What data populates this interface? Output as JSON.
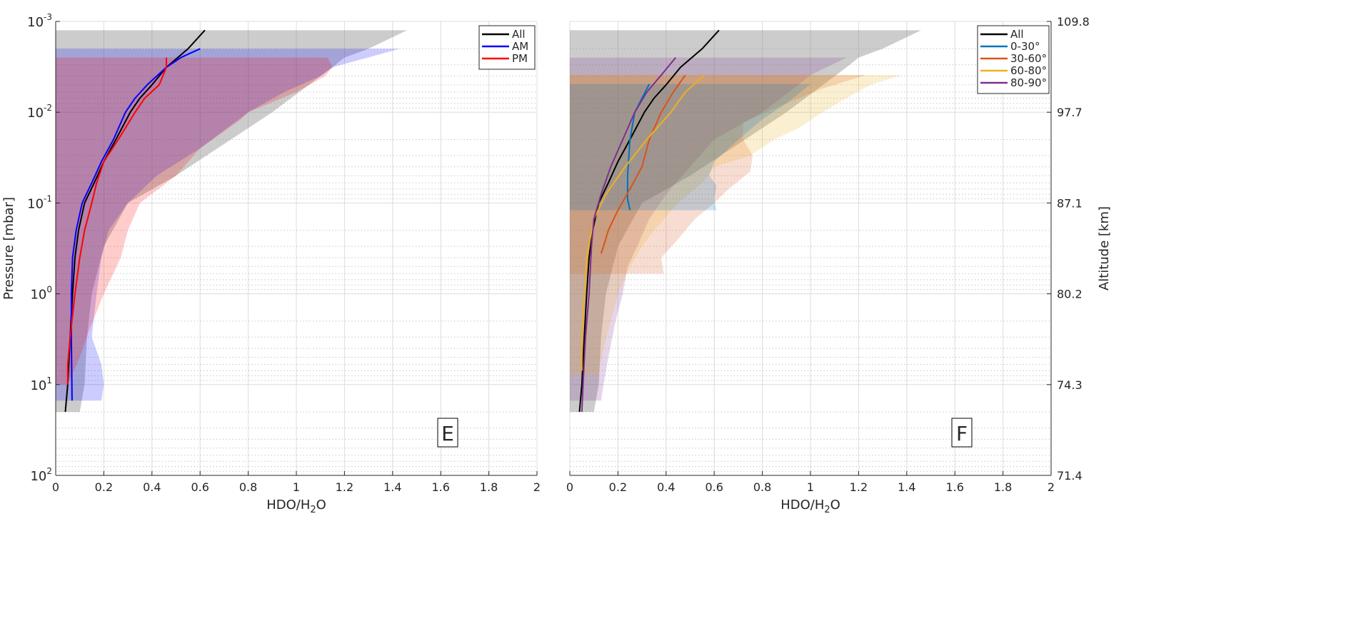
{
  "chart_data": [
    {
      "type": "line",
      "panel_label": "E",
      "xlabel": {
        "pre": "HDO/H",
        "sub": "2",
        "post": "O"
      },
      "ylabel": "Pressure [mbar]",
      "xlim": [
        0,
        2
      ],
      "ylim": [
        0.001,
        100
      ],
      "yscale": "log",
      "yreverse": true,
      "grid": true,
      "legend_position": "top-right",
      "xticks": [
        0,
        0.2,
        0.4,
        0.6,
        0.8,
        1,
        1.2,
        1.4,
        1.6,
        1.8,
        2
      ],
      "xtick_labels": [
        "0",
        "0.2",
        "0.4",
        "0.6",
        "0.8",
        "1",
        "1.2",
        "1.4",
        "1.6",
        "1.8",
        "2"
      ],
      "yticks": [
        0.001,
        0.01,
        0.1,
        1,
        10,
        100
      ],
      "ytick_labels": [
        {
          "base": "10",
          "exp": "-3"
        },
        {
          "base": "10",
          "exp": "-2"
        },
        {
          "base": "10",
          "exp": "-1"
        },
        {
          "base": "10",
          "exp": "0"
        },
        {
          "base": "10",
          "exp": "1"
        },
        {
          "base": "10",
          "exp": "2"
        }
      ],
      "bands": [
        {
          "name": "All",
          "color": "#808080",
          "opacity": 0.4,
          "upper": [
            [
              1.46,
              0.00125
            ],
            [
              1.3,
              0.002
            ],
            [
              1.2,
              0.0025
            ],
            [
              1.15,
              0.0032
            ],
            [
              0.9,
              0.01
            ],
            [
              0.5,
              0.05
            ],
            [
              0.3,
              0.1
            ],
            [
              0.2,
              0.3
            ],
            [
              0.15,
              1
            ],
            [
              0.13,
              3
            ],
            [
              0.12,
              10
            ],
            [
              0.1,
              20
            ]
          ]
        },
        {
          "name": "AM",
          "color": "#0000ff",
          "opacity": 0.2,
          "upper": [
            [
              1.43,
              0.002
            ],
            [
              1.15,
              0.0032
            ],
            [
              1.1,
              0.004
            ],
            [
              0.95,
              0.006
            ],
            [
              0.8,
              0.01
            ],
            [
              0.6,
              0.025
            ],
            [
              0.42,
              0.05
            ],
            [
              0.3,
              0.1
            ],
            [
              0.22,
              0.2
            ],
            [
              0.19,
              0.4
            ],
            [
              0.17,
              1
            ],
            [
              0.15,
              3
            ],
            [
              0.19,
              6
            ],
            [
              0.2,
              10
            ],
            [
              0.19,
              15
            ]
          ]
        },
        {
          "name": "PM",
          "color": "#ff0000",
          "opacity": 0.2,
          "upper": [
            [
              1.13,
              0.0025
            ],
            [
              1.15,
              0.0032
            ],
            [
              1.12,
              0.004
            ],
            [
              1.0,
              0.006
            ],
            [
              0.8,
              0.01
            ],
            [
              0.77,
              0.012
            ],
            [
              0.6,
              0.025
            ],
            [
              0.5,
              0.05
            ],
            [
              0.35,
              0.1
            ],
            [
              0.3,
              0.2
            ],
            [
              0.27,
              0.4
            ],
            [
              0.2,
              1
            ],
            [
              0.14,
              2.5
            ],
            [
              0.1,
              5
            ],
            [
              0.05,
              10
            ]
          ]
        }
      ],
      "series": [
        {
          "name": "All",
          "color": "#000000",
          "points": [
            [
              0.62,
              0.00125
            ],
            [
              0.55,
              0.002
            ],
            [
              0.46,
              0.0032
            ],
            [
              0.4,
              0.005
            ],
            [
              0.35,
              0.007
            ],
            [
              0.31,
              0.01
            ],
            [
              0.25,
              0.02
            ],
            [
              0.2,
              0.035
            ],
            [
              0.16,
              0.06
            ],
            [
              0.12,
              0.1
            ],
            [
              0.095,
              0.2
            ],
            [
              0.08,
              0.4
            ],
            [
              0.07,
              1
            ],
            [
              0.06,
              3
            ],
            [
              0.05,
              10
            ],
            [
              0.04,
              20
            ]
          ]
        },
        {
          "name": "AM",
          "color": "#0000ff",
          "points": [
            [
              0.6,
              0.002
            ],
            [
              0.52,
              0.0025
            ],
            [
              0.46,
              0.0032
            ],
            [
              0.38,
              0.005
            ],
            [
              0.33,
              0.007
            ],
            [
              0.29,
              0.01
            ],
            [
              0.24,
              0.02
            ],
            [
              0.19,
              0.035
            ],
            [
              0.15,
              0.06
            ],
            [
              0.11,
              0.1
            ],
            [
              0.085,
              0.2
            ],
            [
              0.07,
              0.4
            ],
            [
              0.065,
              1
            ],
            [
              0.065,
              3
            ],
            [
              0.068,
              15
            ]
          ]
        },
        {
          "name": "PM",
          "color": "#ff0000",
          "points": [
            [
              0.46,
              0.0025
            ],
            [
              0.46,
              0.0032
            ],
            [
              0.43,
              0.005
            ],
            [
              0.37,
              0.007
            ],
            [
              0.33,
              0.01
            ],
            [
              0.26,
              0.02
            ],
            [
              0.2,
              0.035
            ],
            [
              0.17,
              0.06
            ],
            [
              0.15,
              0.1
            ],
            [
              0.12,
              0.2
            ],
            [
              0.1,
              0.4
            ],
            [
              0.08,
              1
            ],
            [
              0.06,
              3
            ],
            [
              0.05,
              6
            ],
            [
              0.05,
              10
            ]
          ]
        }
      ]
    },
    {
      "type": "line",
      "panel_label": "F",
      "xlabel": {
        "pre": "HDO/H",
        "sub": "2",
        "post": "O"
      },
      "ylabel_right": "Altitude [km]",
      "xlim": [
        0,
        2
      ],
      "ylim": [
        0.001,
        100
      ],
      "yscale": "log",
      "yreverse": true,
      "grid": true,
      "legend_position": "top-right",
      "xticks": [
        0,
        0.2,
        0.4,
        0.6,
        0.8,
        1,
        1.2,
        1.4,
        1.6,
        1.8,
        2
      ],
      "xtick_labels": [
        "0",
        "0.2",
        "0.4",
        "0.6",
        "0.8",
        "1",
        "1.2",
        "1.4",
        "1.6",
        "1.8",
        "2"
      ],
      "yticks": [
        0.001,
        0.01,
        0.1,
        1,
        10,
        100
      ],
      "ytick_labels_right": [
        "109.8",
        "97.7",
        "87.1",
        "80.2",
        "74.3",
        "71.4"
      ],
      "bands": [
        {
          "name": "All",
          "color": "#808080",
          "opacity": 0.4,
          "upper": [
            [
              1.46,
              0.00125
            ],
            [
              1.3,
              0.002
            ],
            [
              1.2,
              0.0025
            ],
            [
              1.15,
              0.0032
            ],
            [
              0.9,
              0.01
            ],
            [
              0.5,
              0.05
            ],
            [
              0.3,
              0.1
            ],
            [
              0.2,
              0.3
            ],
            [
              0.15,
              1
            ],
            [
              0.13,
              3
            ],
            [
              0.12,
              10
            ],
            [
              0.1,
              20
            ]
          ]
        },
        {
          "name": "80-90°",
          "color": "#7E2F8E",
          "opacity": 0.2,
          "upper": [
            [
              1.15,
              0.0025
            ],
            [
              1.0,
              0.0039
            ],
            [
              0.95,
              0.005
            ],
            [
              0.8,
              0.01
            ],
            [
              0.6,
              0.02
            ],
            [
              0.5,
              0.04
            ],
            [
              0.4,
              0.08
            ],
            [
              0.33,
              0.15
            ],
            [
              0.28,
              0.3
            ],
            [
              0.24,
              0.5
            ],
            [
              0.22,
              1
            ],
            [
              0.19,
              2
            ],
            [
              0.16,
              5
            ],
            [
              0.14,
              10
            ],
            [
              0.13,
              15
            ]
          ]
        },
        {
          "name": "30-60°",
          "color": "#D95319",
          "opacity": 0.2,
          "upper": [
            [
              1.23,
              0.0039
            ],
            [
              1.05,
              0.0055
            ],
            [
              0.9,
              0.008
            ],
            [
              0.72,
              0.013
            ],
            [
              0.72,
              0.02
            ],
            [
              0.76,
              0.03
            ],
            [
              0.75,
              0.045
            ],
            [
              0.66,
              0.07
            ],
            [
              0.6,
              0.1
            ],
            [
              0.52,
              0.15
            ],
            [
              0.45,
              0.25
            ],
            [
              0.38,
              0.4
            ],
            [
              0.39,
              0.6
            ]
          ]
        },
        {
          "name": "60-80°",
          "color": "#EDB120",
          "opacity": 0.2,
          "upper": [
            [
              1.38,
              0.0039
            ],
            [
              1.25,
              0.005
            ],
            [
              1.15,
              0.007
            ],
            [
              1.05,
              0.01
            ],
            [
              0.95,
              0.015
            ],
            [
              0.85,
              0.02
            ],
            [
              0.75,
              0.03
            ],
            [
              0.6,
              0.04
            ],
            [
              0.55,
              0.06
            ],
            [
              0.45,
              0.1
            ],
            [
              0.35,
              0.2
            ],
            [
              0.3,
              0.3
            ],
            [
              0.25,
              0.5
            ],
            [
              0.2,
              1
            ],
            [
              0.17,
              2
            ],
            [
              0.14,
              4
            ],
            [
              0.12,
              7.8
            ]
          ]
        },
        {
          "name": "0-30°",
          "color": "#0072BD",
          "opacity": 0.2,
          "upper": [
            [
              1.0,
              0.0049
            ],
            [
              0.9,
              0.008
            ],
            [
              0.8,
              0.012
            ],
            [
              0.7,
              0.02
            ],
            [
              0.6,
              0.035
            ],
            [
              0.58,
              0.05
            ],
            [
              0.61,
              0.065
            ],
            [
              0.6,
              0.09
            ],
            [
              0.61,
              0.12
            ]
          ]
        }
      ],
      "series": [
        {
          "name": "All",
          "color": "#000000",
          "points": [
            [
              0.62,
              0.00125
            ],
            [
              0.55,
              0.002
            ],
            [
              0.46,
              0.0032
            ],
            [
              0.4,
              0.005
            ],
            [
              0.35,
              0.007
            ],
            [
              0.31,
              0.01
            ],
            [
              0.25,
              0.02
            ],
            [
              0.2,
              0.035
            ],
            [
              0.16,
              0.06
            ],
            [
              0.12,
              0.1
            ],
            [
              0.095,
              0.2
            ],
            [
              0.08,
              0.4
            ],
            [
              0.07,
              1
            ],
            [
              0.06,
              3
            ],
            [
              0.05,
              10
            ],
            [
              0.04,
              20
            ]
          ]
        },
        {
          "name": "0-30°",
          "color": "#0072BD",
          "points": [
            [
              0.33,
              0.0049
            ],
            [
              0.3,
              0.007
            ],
            [
              0.27,
              0.01
            ],
            [
              0.25,
              0.02
            ],
            [
              0.24,
              0.05
            ],
            [
              0.24,
              0.09
            ],
            [
              0.25,
              0.12
            ]
          ]
        },
        {
          "name": "30-60°",
          "color": "#D95319",
          "points": [
            [
              0.48,
              0.0039
            ],
            [
              0.43,
              0.006
            ],
            [
              0.38,
              0.01
            ],
            [
              0.33,
              0.02
            ],
            [
              0.3,
              0.04
            ],
            [
              0.25,
              0.07
            ],
            [
              0.2,
              0.12
            ],
            [
              0.16,
              0.2
            ],
            [
              0.14,
              0.3
            ],
            [
              0.13,
              0.36
            ]
          ]
        },
        {
          "name": "60-80°",
          "color": "#EDB120",
          "points": [
            [
              0.56,
              0.0039
            ],
            [
              0.48,
              0.006
            ],
            [
              0.42,
              0.01
            ],
            [
              0.32,
              0.02
            ],
            [
              0.23,
              0.04
            ],
            [
              0.15,
              0.08
            ],
            [
              0.1,
              0.15
            ],
            [
              0.07,
              0.4
            ],
            [
              0.06,
              1
            ],
            [
              0.05,
              3
            ],
            [
              0.05,
              7
            ]
          ]
        },
        {
          "name": "80-90°",
          "color": "#7E2F8E",
          "points": [
            [
              0.44,
              0.0025
            ],
            [
              0.38,
              0.0039
            ],
            [
              0.32,
              0.006
            ],
            [
              0.27,
              0.01
            ],
            [
              0.22,
              0.02
            ],
            [
              0.17,
              0.04
            ],
            [
              0.13,
              0.08
            ],
            [
              0.1,
              0.15
            ],
            [
              0.09,
              0.3
            ],
            [
              0.08,
              1
            ],
            [
              0.065,
              3
            ],
            [
              0.055,
              10
            ],
            [
              0.05,
              20
            ]
          ]
        }
      ]
    }
  ]
}
